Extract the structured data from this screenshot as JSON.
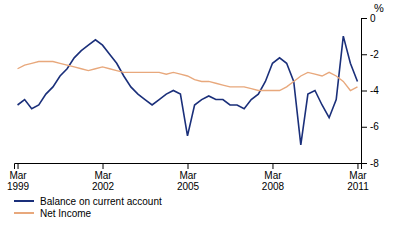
{
  "chart_data": {
    "type": "line",
    "ylabel": "%",
    "categories": [
      "Mar\n1999",
      null,
      null,
      null,
      null,
      null,
      null,
      null,
      null,
      null,
      null,
      null,
      "Mar\n2002",
      null,
      null,
      null,
      null,
      null,
      null,
      null,
      null,
      null,
      null,
      null,
      "Mar\n2005",
      null,
      null,
      null,
      null,
      null,
      null,
      null,
      null,
      null,
      null,
      null,
      "Mar\n2008",
      null,
      null,
      null,
      null,
      null,
      null,
      null,
      null,
      null,
      null,
      null,
      "Mar\n2011"
    ],
    "series": [
      {
        "name": "Balance on current account",
        "color": "#1a2f7a",
        "values": [
          -4.8,
          -4.5,
          -5.0,
          -4.8,
          -4.2,
          -3.8,
          -3.2,
          -2.8,
          -2.2,
          -1.8,
          -1.5,
          -1.2,
          -1.5,
          -2.0,
          -2.5,
          -3.2,
          -3.8,
          -4.2,
          -4.5,
          -4.8,
          -4.5,
          -4.2,
          -4.0,
          -4.2,
          -6.5,
          -4.8,
          -4.5,
          -4.3,
          -4.5,
          -4.5,
          -4.8,
          -4.8,
          -5.0,
          -4.5,
          -4.2,
          -3.5,
          -2.5,
          -2.2,
          -2.5,
          -3.5,
          -7.0,
          -4.2,
          -4.0,
          -4.8,
          -5.5,
          -4.5,
          -1.0,
          -2.5,
          -3.5
        ]
      },
      {
        "name": "Net Income",
        "color": "#e8a87c",
        "values": [
          -2.8,
          -2.6,
          -2.5,
          -2.4,
          -2.4,
          -2.4,
          -2.5,
          -2.6,
          -2.7,
          -2.8,
          -2.9,
          -2.8,
          -2.7,
          -2.8,
          -2.9,
          -3.0,
          -3.0,
          -3.0,
          -3.0,
          -3.0,
          -3.0,
          -3.1,
          -3.0,
          -3.1,
          -3.2,
          -3.4,
          -3.5,
          -3.5,
          -3.6,
          -3.7,
          -3.8,
          -3.8,
          -3.8,
          -3.9,
          -4.0,
          -4.0,
          -4.0,
          -4.0,
          -3.8,
          -3.5,
          -3.2,
          -3.0,
          -3.1,
          -3.2,
          -3.0,
          -3.2,
          -3.5,
          -4.0,
          -3.8
        ]
      }
    ],
    "ylim": [
      -8,
      0
    ],
    "yticks": [
      0,
      -2,
      -4,
      -6,
      -8
    ],
    "legend": "bottom"
  }
}
